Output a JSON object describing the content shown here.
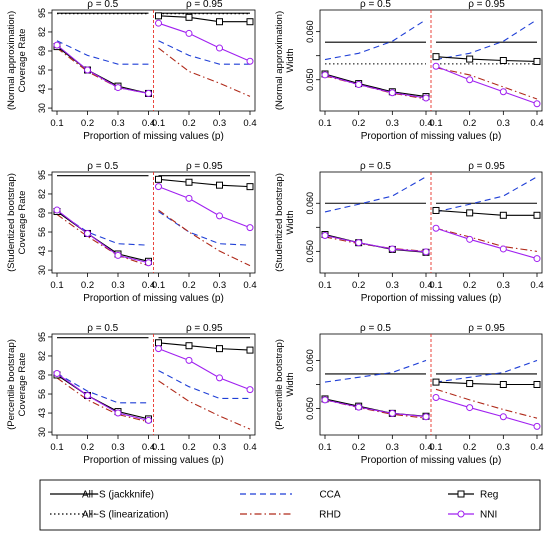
{
  "x_axis_label": "Proportion of missing values (p)",
  "x_ticks": [
    0.1,
    0.2,
    0.3,
    0.4
  ],
  "rho_labels": [
    "ρ = 0.5",
    "ρ = 0.95"
  ],
  "colors": {
    "all_s_jackknife": "#000000",
    "all_s_linearization": "#000000",
    "cca": "#1f3fd6",
    "rhd": "#b02a1a",
    "reg": "#000000",
    "nni": "#a020f0",
    "divider": "#e8322a"
  },
  "legend": {
    "entries": [
      {
        "key": "all_s_jackknife",
        "label": "All−S (jackknife)",
        "style": "solid",
        "marker": "none"
      },
      {
        "key": "all_s_linearization",
        "label": "All−S (linearization)",
        "style": "dotted",
        "marker": "none"
      },
      {
        "key": "cca",
        "label": "CCA",
        "style": "dashed",
        "marker": "none"
      },
      {
        "key": "rhd",
        "label": "RHD",
        "style": "dashdot",
        "marker": "none"
      },
      {
        "key": "reg",
        "label": "Reg",
        "style": "solid",
        "marker": "square"
      },
      {
        "key": "nni",
        "label": "NNI",
        "style": "solid",
        "marker": "circle"
      }
    ]
  },
  "chart_data": [
    {
      "type": "line",
      "panel": "normal-approximation-coverage",
      "ylabel": [
        "(Normal approximation)",
        "Coverage Rate"
      ],
      "yticks": [
        30,
        43,
        56,
        69,
        82,
        95
      ],
      "ylim": [
        28,
        97
      ],
      "x": [
        0.1,
        0.2,
        0.3,
        0.4
      ],
      "groups": [
        {
          "rho": "ρ = 0.5",
          "series": [
            {
              "key": "all_s_jackknife",
              "values": [
                94.8,
                94.8,
                94.8,
                94.8
              ]
            },
            {
              "key": "all_s_linearization",
              "values": [
                94.5,
                94.5,
                94.5,
                94.5
              ]
            },
            {
              "key": "cca",
              "values": [
                76,
                66,
                60,
                60
              ]
            },
            {
              "key": "rhd",
              "values": [
                71,
                55,
                44,
                40
              ]
            },
            {
              "key": "reg",
              "values": [
                72,
                56,
                45,
                40
              ]
            },
            {
              "key": "nni",
              "values": [
                73,
                56,
                44,
                40
              ]
            }
          ]
        },
        {
          "rho": "ρ = 0.95",
          "series": [
            {
              "key": "all_s_jackknife",
              "values": [
                94.8,
                94.8,
                94.8,
                94.8
              ]
            },
            {
              "key": "all_s_linearization",
              "values": [
                94.5,
                94.5,
                94.5,
                94.5
              ]
            },
            {
              "key": "cca",
              "values": [
                76,
                66,
                60,
                60
              ]
            },
            {
              "key": "rhd",
              "values": [
                71,
                55,
                47,
                38
              ]
            },
            {
              "key": "reg",
              "values": [
                93,
                92,
                89,
                89
              ]
            },
            {
              "key": "nni",
              "values": [
                88,
                81,
                71,
                62
              ]
            }
          ]
        }
      ]
    },
    {
      "type": "line",
      "panel": "normal-approximation-width",
      "ylabel": [
        "(Normal approximation)",
        "Width"
      ],
      "yticks": [
        0.05,
        0.055,
        0.06
      ],
      "yticklabels": [
        "0.050",
        "",
        "0.060"
      ],
      "ylim": [
        0.0435,
        0.0645
      ],
      "x": [
        0.1,
        0.2,
        0.3,
        0.4
      ],
      "groups": [
        {
          "rho": "ρ = 0.5",
          "series": [
            {
              "key": "all_s_jackknife",
              "values": [
                0.0578,
                0.0578,
                0.0578,
                0.0578
              ]
            },
            {
              "key": "all_s_linearization",
              "values": [
                0.0533,
                0.0533,
                0.0533,
                0.0533
              ]
            },
            {
              "key": "cca",
              "values": [
                0.0542,
                0.0555,
                0.058,
                0.0625
              ]
            },
            {
              "key": "rhd",
              "values": [
                0.0508,
                0.049,
                0.0472,
                0.046
              ]
            },
            {
              "key": "reg",
              "values": [
                0.0512,
                0.0492,
                0.0475,
                0.0465
              ]
            },
            {
              "key": "nni",
              "values": [
                0.051,
                0.049,
                0.0473,
                0.0462
              ]
            }
          ]
        },
        {
          "rho": "ρ = 0.95",
          "series": [
            {
              "key": "all_s_jackknife",
              "values": [
                0.0578,
                0.0578,
                0.0578,
                0.0578
              ]
            },
            {
              "key": "all_s_linearization",
              "values": [
                0.0533,
                0.0533,
                0.0533,
                0.0533
              ]
            },
            {
              "key": "cca",
              "values": [
                0.0542,
                0.0555,
                0.058,
                0.0625
              ]
            },
            {
              "key": "rhd",
              "values": [
                0.0525,
                0.051,
                0.0485,
                0.046
              ]
            },
            {
              "key": "reg",
              "values": [
                0.0548,
                0.0543,
                0.054,
                0.0538
              ]
            },
            {
              "key": "nni",
              "values": [
                0.0528,
                0.05,
                0.0475,
                0.045
              ]
            }
          ]
        }
      ]
    },
    {
      "type": "line",
      "panel": "studentized-bootstrap-coverage",
      "ylabel": [
        "(Studentized bootstrap)",
        "Coverage Rate"
      ],
      "yticks": [
        30,
        43,
        56,
        69,
        82,
        95
      ],
      "ylim": [
        28,
        97
      ],
      "x": [
        0.1,
        0.2,
        0.3,
        0.4
      ],
      "groups": [
        {
          "rho": "ρ = 0.5",
          "series": [
            {
              "key": "all_s_jackknife",
              "values": [
                94.5,
                94.5,
                94.5,
                94.5
              ]
            },
            {
              "key": "cca",
              "values": [
                70,
                56,
                48,
                47
              ]
            },
            {
              "key": "rhd",
              "values": [
                68,
                53,
                40,
                33
              ]
            },
            {
              "key": "reg",
              "values": [
                70,
                55,
                41,
                36
              ]
            },
            {
              "key": "nni",
              "values": [
                71,
                55,
                40,
                35
              ]
            }
          ]
        },
        {
          "rho": "ρ = 0.95",
          "series": [
            {
              "key": "all_s_jackknife",
              "values": [
                94.5,
                94.5,
                94.5,
                94.5
              ]
            },
            {
              "key": "cca",
              "values": [
                70,
                56,
                48,
                47
              ]
            },
            {
              "key": "rhd",
              "values": [
                71,
                56,
                43,
                33
              ]
            },
            {
              "key": "reg",
              "values": [
                92,
                90,
                88,
                87
              ]
            },
            {
              "key": "nni",
              "values": [
                87,
                79,
                67,
                59
              ]
            }
          ]
        }
      ]
    },
    {
      "type": "line",
      "panel": "studentized-bootstrap-width",
      "ylabel": [
        "(Studentized bootstrap)",
        "Width"
      ],
      "yticks": [
        0.05,
        0.055,
        0.06
      ],
      "yticklabels": [
        "0.050",
        "",
        "0.060"
      ],
      "ylim": [
        0.0455,
        0.0665
      ],
      "x": [
        0.1,
        0.2,
        0.3,
        0.4
      ],
      "groups": [
        {
          "rho": "ρ = 0.5",
          "series": [
            {
              "key": "all_s_jackknife",
              "values": [
                0.06,
                0.06,
                0.06,
                0.06
              ]
            },
            {
              "key": "cca",
              "values": [
                0.0582,
                0.0598,
                0.0615,
                0.0655
              ]
            },
            {
              "key": "rhd",
              "values": [
                0.053,
                0.0516,
                0.0506,
                0.05
              ]
            },
            {
              "key": "reg",
              "values": [
                0.0535,
                0.0518,
                0.0504,
                0.0498
              ]
            },
            {
              "key": "nni",
              "values": [
                0.0533,
                0.0518,
                0.0505,
                0.0499
              ]
            }
          ]
        },
        {
          "rho": "ρ = 0.95",
          "series": [
            {
              "key": "all_s_jackknife",
              "values": [
                0.06,
                0.06,
                0.06,
                0.06
              ]
            },
            {
              "key": "cca",
              "values": [
                0.0582,
                0.0598,
                0.0615,
                0.0655
              ]
            },
            {
              "key": "rhd",
              "values": [
                0.0548,
                0.053,
                0.051,
                0.05
              ]
            },
            {
              "key": "reg",
              "values": [
                0.0585,
                0.058,
                0.0575,
                0.0575
              ]
            },
            {
              "key": "nni",
              "values": [
                0.0548,
                0.0525,
                0.0505,
                0.0485
              ]
            }
          ]
        }
      ]
    },
    {
      "type": "line",
      "panel": "percentile-bootstrap-coverage",
      "ylabel": [
        "(Percentile bootstrap)",
        "Coverage Rate"
      ],
      "yticks": [
        30,
        43,
        56,
        69,
        82,
        95
      ],
      "ylim": [
        28,
        97
      ],
      "x": [
        0.1,
        0.2,
        0.3,
        0.4
      ],
      "groups": [
        {
          "rho": "ρ = 0.5",
          "series": [
            {
              "key": "all_s_jackknife",
              "values": [
                94.5,
                94.5,
                94.5,
                94.5
              ]
            },
            {
              "key": "cca",
              "values": [
                70,
                58,
                50,
                50
              ]
            },
            {
              "key": "rhd",
              "values": [
                67,
                52,
                42,
                37
              ]
            },
            {
              "key": "reg",
              "values": [
                69,
                55,
                44,
                39
              ]
            },
            {
              "key": "nni",
              "values": [
                70,
                55,
                43,
                38
              ]
            }
          ]
        },
        {
          "rho": "ρ = 0.95",
          "series": [
            {
              "key": "all_s_jackknife",
              "values": [
                94.5,
                94.5,
                94.5,
                94.5
              ]
            },
            {
              "key": "cca",
              "values": [
                72,
                61,
                53,
                53
              ]
            },
            {
              "key": "rhd",
              "values": [
                65,
                51,
                41,
                32
              ]
            },
            {
              "key": "reg",
              "values": [
                91,
                89,
                87,
                86
              ]
            },
            {
              "key": "nni",
              "values": [
                87,
                79,
                67,
                59
              ]
            }
          ]
        }
      ]
    },
    {
      "type": "line",
      "panel": "percentile-bootstrap-width",
      "ylabel": [
        "(Percentile bootstrap)",
        "Width"
      ],
      "yticks": [
        0.05,
        0.055,
        0.06
      ],
      "yticklabels": [
        "0.050",
        "",
        "0.060"
      ],
      "ylim": [
        0.0445,
        0.0655
      ],
      "x": [
        0.1,
        0.2,
        0.3,
        0.4
      ],
      "groups": [
        {
          "rho": "ρ = 0.5",
          "series": [
            {
              "key": "all_s_jackknife",
              "values": [
                0.0572,
                0.0572,
                0.0572,
                0.0572
              ]
            },
            {
              "key": "cca",
              "values": [
                0.0555,
                0.0565,
                0.0575,
                0.06
              ]
            },
            {
              "key": "rhd",
              "values": [
                0.0518,
                0.0502,
                0.0488,
                0.048
              ]
            },
            {
              "key": "reg",
              "values": [
                0.052,
                0.0505,
                0.049,
                0.0484
              ]
            },
            {
              "key": "nni",
              "values": [
                0.0518,
                0.0503,
                0.049,
                0.0483
              ]
            }
          ]
        },
        {
          "rho": "ρ = 0.95",
          "series": [
            {
              "key": "all_s_jackknife",
              "values": [
                0.0572,
                0.0572,
                0.0572,
                0.0572
              ]
            },
            {
              "key": "cca",
              "values": [
                0.0555,
                0.0565,
                0.0575,
                0.06
              ]
            },
            {
              "key": "rhd",
              "values": [
                0.054,
                0.0518,
                0.0498,
                0.048
              ]
            },
            {
              "key": "reg",
              "values": [
                0.0555,
                0.0552,
                0.055,
                0.055
              ]
            },
            {
              "key": "nni",
              "values": [
                0.0523,
                0.0502,
                0.0483,
                0.0463
              ]
            }
          ]
        }
      ]
    }
  ]
}
